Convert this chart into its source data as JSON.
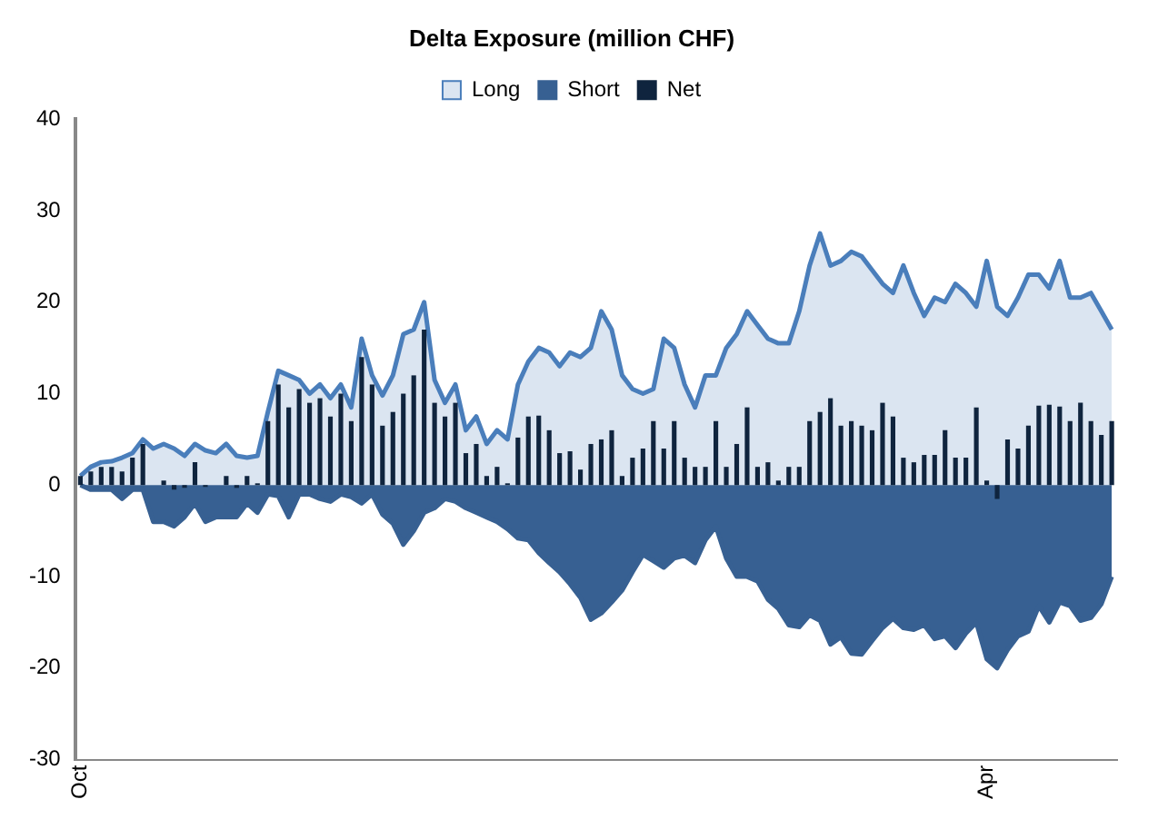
{
  "chart_data": {
    "type": "area",
    "title": "Delta Exposure (million CHF)",
    "categories": [
      "Oct",
      null,
      null,
      null,
      null,
      null,
      null,
      null,
      null,
      null,
      null,
      null,
      null,
      null,
      null,
      null,
      null,
      null,
      null,
      null,
      null,
      null,
      null,
      null,
      null,
      null,
      null,
      null,
      null,
      null,
      null,
      null,
      null,
      null,
      null,
      null,
      null,
      null,
      null,
      null,
      null,
      null,
      null,
      null,
      null,
      null,
      null,
      null,
      null,
      null,
      null,
      null,
      null,
      null,
      null,
      null,
      null,
      null,
      null,
      null,
      null,
      null,
      null,
      null,
      null,
      null,
      null,
      null,
      null,
      null,
      null,
      null,
      null,
      null,
      null,
      null,
      null,
      null,
      null,
      null,
      null,
      null,
      null,
      null,
      null,
      null,
      null,
      "Apr",
      null,
      null,
      null,
      null,
      null,
      null,
      null,
      null,
      null,
      null,
      null,
      null
    ],
    "series": [
      {
        "name": "Long",
        "color": "#4a7ebb",
        "values": [
          1,
          2,
          2.5,
          2.6,
          3,
          3.5,
          5,
          4,
          4.5,
          4,
          3.2,
          4.5,
          3.8,
          3.5,
          4.5,
          3.2,
          3,
          3.2,
          8,
          12.5,
          12,
          11.5,
          10,
          11,
          9.5,
          11,
          8.5,
          16,
          12,
          9.8,
          12,
          16.5,
          17,
          20,
          11.5,
          9,
          11,
          6,
          7.5,
          4.5,
          6,
          5,
          11,
          13.5,
          15,
          14.5,
          13,
          14.5,
          14,
          15,
          19,
          17,
          12,
          10.5,
          10,
          10.5,
          16,
          15,
          11,
          8.5,
          12,
          12,
          15,
          16.5,
          19,
          17.5,
          16,
          15.5,
          15.5,
          19,
          24,
          27.5,
          24,
          24.5,
          25.5,
          25,
          23.5,
          22,
          21,
          24,
          21,
          18.5,
          20.5,
          20,
          22,
          21,
          19.5,
          24.5,
          19.5,
          18.5,
          20.5,
          23,
          23,
          21.5,
          24.5,
          20.5,
          20.5,
          21,
          19,
          17
        ]
      },
      {
        "name": "Short",
        "color": "#376092",
        "values": [
          0,
          -0.5,
          -0.5,
          -0.5,
          -1.5,
          -0.5,
          -0.5,
          -4,
          -4,
          -4.5,
          -3.5,
          -2,
          -4,
          -3.5,
          -3.5,
          -3.5,
          -2,
          -3,
          -1,
          -1.2,
          -3.5,
          -1,
          -1,
          -1.5,
          -1.8,
          -1,
          -1.3,
          -2,
          -1,
          -3.2,
          -4.2,
          -6.5,
          -5,
          -3,
          -2.5,
          -1.5,
          -1.8,
          -2.5,
          -3,
          -3.5,
          -4,
          -4.8,
          -5.8,
          -6,
          -7.4,
          -8.5,
          -9.5,
          -10.8,
          -12.3,
          -14.7,
          -14,
          -12.8,
          -11.5,
          -9.5,
          -7.6,
          -8.3,
          -9,
          -8,
          -7.7,
          -8.5,
          -6,
          -4.5,
          -8,
          -10,
          -10,
          -10.5,
          -12.5,
          -13.5,
          -15.3,
          -15.5,
          -14.2,
          -14.8,
          -17.4,
          -16.6,
          -18.4,
          -18.5,
          -17,
          -15.6,
          -14.6,
          -15.6,
          -15.8,
          -15.3,
          -16.8,
          -16.5,
          -17.8,
          -16.2,
          -15,
          -19,
          -20,
          -18,
          -16.5,
          -16,
          -13.2,
          -15,
          -12.8,
          -13.2,
          -14.8,
          -14.5,
          -13,
          -10
        ]
      },
      {
        "name": "Net",
        "type": "bar",
        "color": "#0f243e",
        "values": [
          1,
          1.5,
          2,
          2,
          1.5,
          3,
          4.5,
          0,
          0.5,
          -0.5,
          -0.3,
          2.5,
          -0.2,
          0,
          1,
          -0.3,
          1,
          0.2,
          7,
          11,
          8.5,
          10.5,
          9,
          9.5,
          7.5,
          10,
          7,
          14,
          11,
          6.5,
          8,
          10,
          12,
          17,
          9,
          7.5,
          9,
          3.5,
          4.5,
          1,
          2,
          0.2,
          5.2,
          7.5,
          7.6,
          6,
          3.5,
          3.7,
          1.7,
          4.5,
          5,
          6,
          1,
          3,
          4,
          7,
          4,
          7,
          3,
          2,
          2,
          7,
          2,
          4.5,
          8.5,
          2,
          2.5,
          0.5,
          2,
          2,
          7,
          8,
          9.5,
          6.5,
          7,
          6.5,
          6,
          9,
          7.5,
          3,
          2.5,
          3.3,
          3.3,
          6,
          3,
          3,
          8.5,
          0.5,
          -1.5,
          5,
          4,
          6.5,
          8.7,
          8.8,
          8.6,
          7,
          9,
          7,
          5.5,
          7
        ]
      }
    ],
    "ylim": [
      -30,
      40
    ],
    "yticks": [
      -30,
      -20,
      -10,
      0,
      10,
      20,
      30,
      40
    ],
    "grid": false,
    "legend": "top"
  }
}
